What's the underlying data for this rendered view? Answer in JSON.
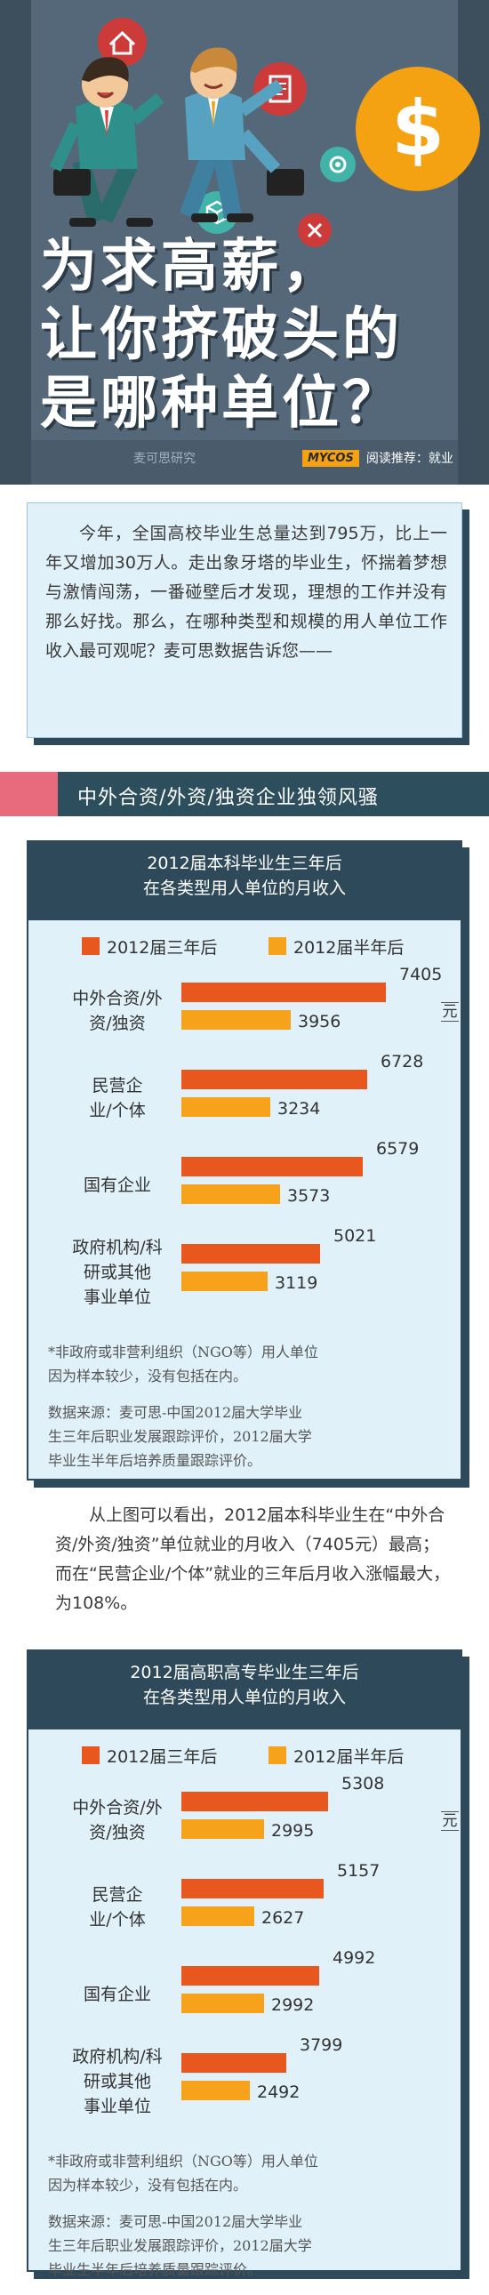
{
  "hero": {
    "title_line1": "为求高薪，",
    "title_line2": "让你挤破头的",
    "title_line3": "是哪种单位？",
    "dollar_sign": "$",
    "logo": "MYCOS",
    "recommend": "阅读推荐：就业"
  },
  "intro": {
    "text": "今年，全国高校毕业生总量达到795万，比上一年又增加30万人。走出象牙塔的毕业生，怀揣着梦想与激情闯荡，一番碰壁后才发现，理想的工作并没有那么好找。那么，在哪种类型和规模的用人单位工作收入最可观呢？麦可思数据告诉您——"
  },
  "section": {
    "title": "中外合资/外资/独资企业独领风骚"
  },
  "watermark": "麦可思研究",
  "chart_data": [
    {
      "type": "bar",
      "title": "2012届本科毕业生三年后 在各类型用人单位的月收入",
      "title_line1": "2012届本科毕业生三年后",
      "title_line2": "在各类型用人单位的月收入",
      "unit": "元",
      "categories": [
        "中外合资/外资/独资",
        "民营企业/个体",
        "国有企业",
        "政府机构/科研或其他事业单位"
      ],
      "category_lines": [
        [
          "中外合资/外",
          "资/独资"
        ],
        [
          "民营企",
          "业/个体"
        ],
        [
          "国有企业"
        ],
        [
          "政府机构/科",
          "研或其他",
          "事业单位"
        ]
      ],
      "series": [
        {
          "name": "2012届三年后",
          "color": "#e8571e",
          "values": [
            7405,
            6728,
            6579,
            5021
          ]
        },
        {
          "name": "2012届半年后",
          "color": "#f7a21b",
          "values": [
            3956,
            3234,
            3573,
            3119
          ]
        }
      ],
      "note_lines": [
        "*非政府或非营利组织（NGO等）用人单位",
        "因为样本较少，没有包括在内。"
      ],
      "source_lines": [
        "数据来源：麦可思-中国2012届大学毕业",
        "生三年后职业发展跟踪评价，2012届大学",
        "毕业生半年后培养质量跟踪评价。"
      ]
    },
    {
      "type": "bar",
      "title": "2012届高职高专毕业生三年后 在各类型用人单位的月收入",
      "title_line1": "2012届高职高专毕业生三年后",
      "title_line2": "在各类型用人单位的月收入",
      "unit": "元",
      "categories": [
        "中外合资/外资/独资",
        "民营企业/个体",
        "国有企业",
        "政府机构/科研或其他事业单位"
      ],
      "category_lines": [
        [
          "中外合资/外",
          "资/独资"
        ],
        [
          "民营企",
          "业/个体"
        ],
        [
          "国有企业"
        ],
        [
          "政府机构/科",
          "研或其他",
          "事业单位"
        ]
      ],
      "series": [
        {
          "name": "2012届三年后",
          "color": "#e8571e",
          "values": [
            5308,
            5157,
            4992,
            3799
          ]
        },
        {
          "name": "2012届半年后",
          "color": "#f7a21b",
          "values": [
            2995,
            2627,
            2992,
            2492
          ]
        }
      ],
      "note_lines": [
        "*非政府或非营利组织（NGO等）用人单位",
        "因为样本较少，没有包括在内。"
      ],
      "source_lines": [
        "数据来源：麦可思-中国2012届大学毕业",
        "生三年后职业发展跟踪评价，2012届大学",
        "毕业生半年后培养质量跟踪评价。"
      ]
    }
  ],
  "analysis": {
    "text": "从上图可以看出，2012届本科毕业生在“中外合资/外资/独资”单位就业的月收入（7405元）最高；而在“民营企业/个体”就业的三年后月收入涨幅最大，为108%。"
  }
}
